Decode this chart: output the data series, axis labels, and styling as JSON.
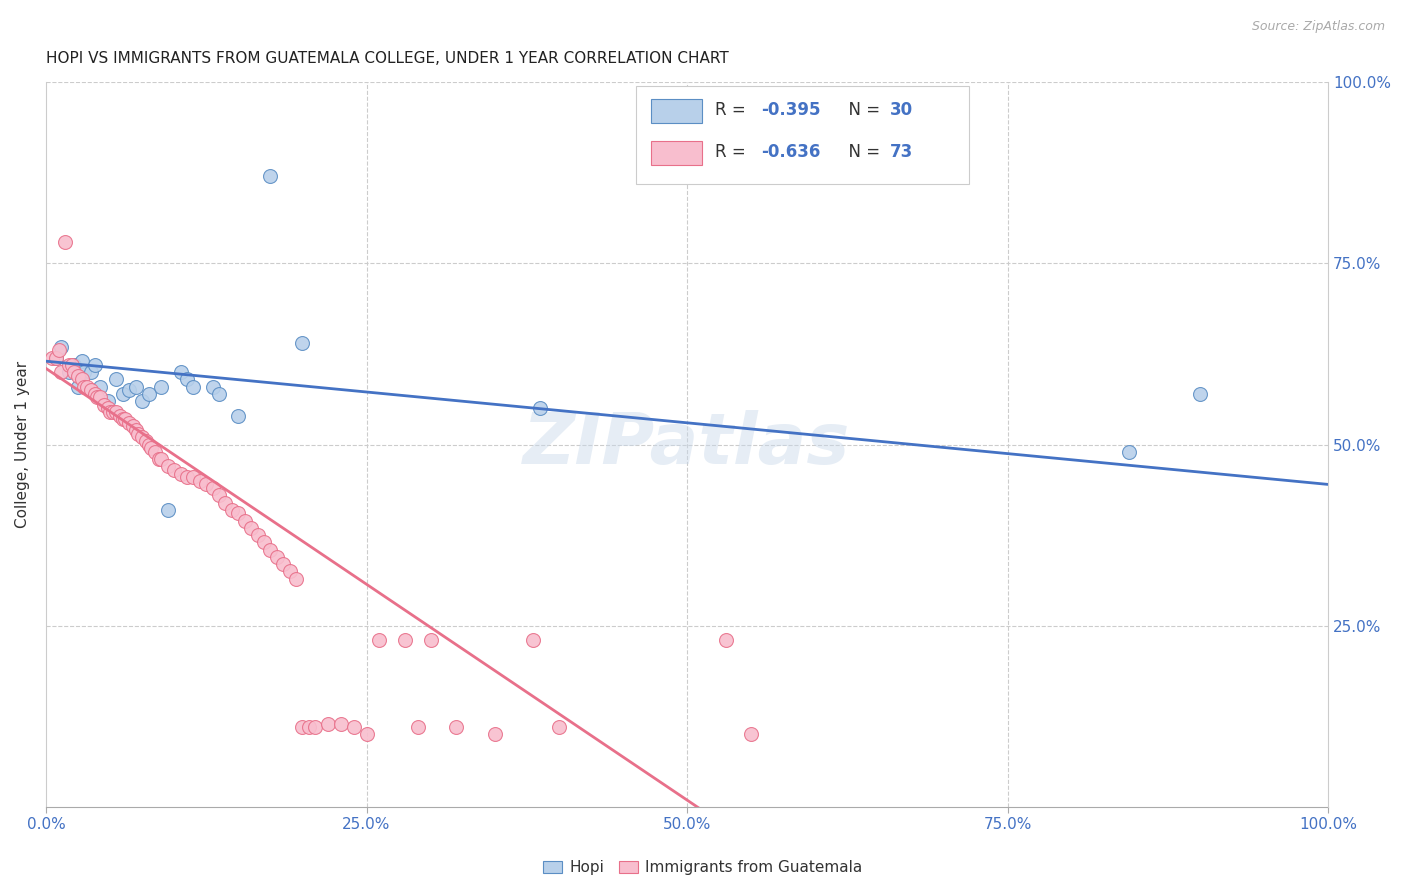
{
  "title": "HOPI VS IMMIGRANTS FROM GUATEMALA COLLEGE, UNDER 1 YEAR CORRELATION CHART",
  "source": "Source: ZipAtlas.com",
  "ylabel": "College, Under 1 year",
  "ytick_vals": [
    0.0,
    0.25,
    0.5,
    0.75,
    1.0
  ],
  "ytick_labels": [
    "",
    "",
    "",
    "",
    ""
  ],
  "ytick_right_vals": [
    0.25,
    0.5,
    0.75,
    1.0
  ],
  "ytick_right_labels": [
    "25.0%",
    "50.0%",
    "75.0%",
    "100.0%"
  ],
  "xtick_vals": [
    0.0,
    0.25,
    0.5,
    0.75,
    1.0
  ],
  "xtick_labels": [
    "0.0%",
    "25.0%",
    "50.0%",
    "75.0%",
    "100.0%"
  ],
  "legend_label1": "Hopi",
  "legend_label2": "Immigrants from Guatemala",
  "r1": "-0.395",
  "n1": "30",
  "r2": "-0.636",
  "n2": "73",
  "hopi_fill": "#b8d0ea",
  "hopi_edge": "#5b8ec4",
  "guatemala_fill": "#f8bece",
  "guatemala_edge": "#e8708a",
  "hopi_line_color": "#4472c4",
  "guatemala_line_color": "#e8708a",
  "watermark": "ZIPatlas",
  "hopi_x": [
    0.008,
    0.012,
    0.018,
    0.022,
    0.025,
    0.028,
    0.03,
    0.035,
    0.038,
    0.042,
    0.048,
    0.055,
    0.06,
    0.065,
    0.07,
    0.075,
    0.08,
    0.09,
    0.095,
    0.105,
    0.11,
    0.115,
    0.13,
    0.135,
    0.15,
    0.175,
    0.2,
    0.385,
    0.845,
    0.9
  ],
  "hopi_y": [
    0.62,
    0.635,
    0.6,
    0.61,
    0.58,
    0.615,
    0.6,
    0.6,
    0.61,
    0.58,
    0.56,
    0.59,
    0.57,
    0.575,
    0.58,
    0.56,
    0.57,
    0.58,
    0.41,
    0.6,
    0.59,
    0.58,
    0.58,
    0.57,
    0.54,
    0.87,
    0.64,
    0.55,
    0.49,
    0.57
  ],
  "guatemala_x": [
    0.005,
    0.008,
    0.01,
    0.012,
    0.015,
    0.018,
    0.02,
    0.022,
    0.025,
    0.028,
    0.03,
    0.032,
    0.035,
    0.038,
    0.04,
    0.042,
    0.045,
    0.048,
    0.05,
    0.052,
    0.055,
    0.058,
    0.06,
    0.062,
    0.065,
    0.068,
    0.07,
    0.072,
    0.075,
    0.078,
    0.08,
    0.082,
    0.085,
    0.088,
    0.09,
    0.095,
    0.1,
    0.105,
    0.11,
    0.115,
    0.12,
    0.125,
    0.13,
    0.135,
    0.14,
    0.145,
    0.15,
    0.155,
    0.16,
    0.165,
    0.17,
    0.175,
    0.18,
    0.185,
    0.19,
    0.195,
    0.2,
    0.205,
    0.21,
    0.22,
    0.23,
    0.24,
    0.25,
    0.26,
    0.28,
    0.29,
    0.3,
    0.32,
    0.35,
    0.38,
    0.4,
    0.53,
    0.55
  ],
  "guatemala_y": [
    0.62,
    0.62,
    0.63,
    0.6,
    0.78,
    0.61,
    0.61,
    0.6,
    0.595,
    0.59,
    0.58,
    0.58,
    0.575,
    0.57,
    0.565,
    0.565,
    0.555,
    0.55,
    0.545,
    0.545,
    0.545,
    0.54,
    0.535,
    0.535,
    0.53,
    0.525,
    0.52,
    0.515,
    0.51,
    0.505,
    0.5,
    0.495,
    0.49,
    0.48,
    0.48,
    0.47,
    0.465,
    0.46,
    0.455,
    0.455,
    0.45,
    0.445,
    0.44,
    0.43,
    0.42,
    0.41,
    0.405,
    0.395,
    0.385,
    0.375,
    0.365,
    0.355,
    0.345,
    0.335,
    0.325,
    0.315,
    0.11,
    0.11,
    0.11,
    0.115,
    0.115,
    0.11,
    0.1,
    0.23,
    0.23,
    0.11,
    0.23,
    0.11,
    0.1,
    0.23,
    0.11,
    0.23,
    0.1
  ]
}
